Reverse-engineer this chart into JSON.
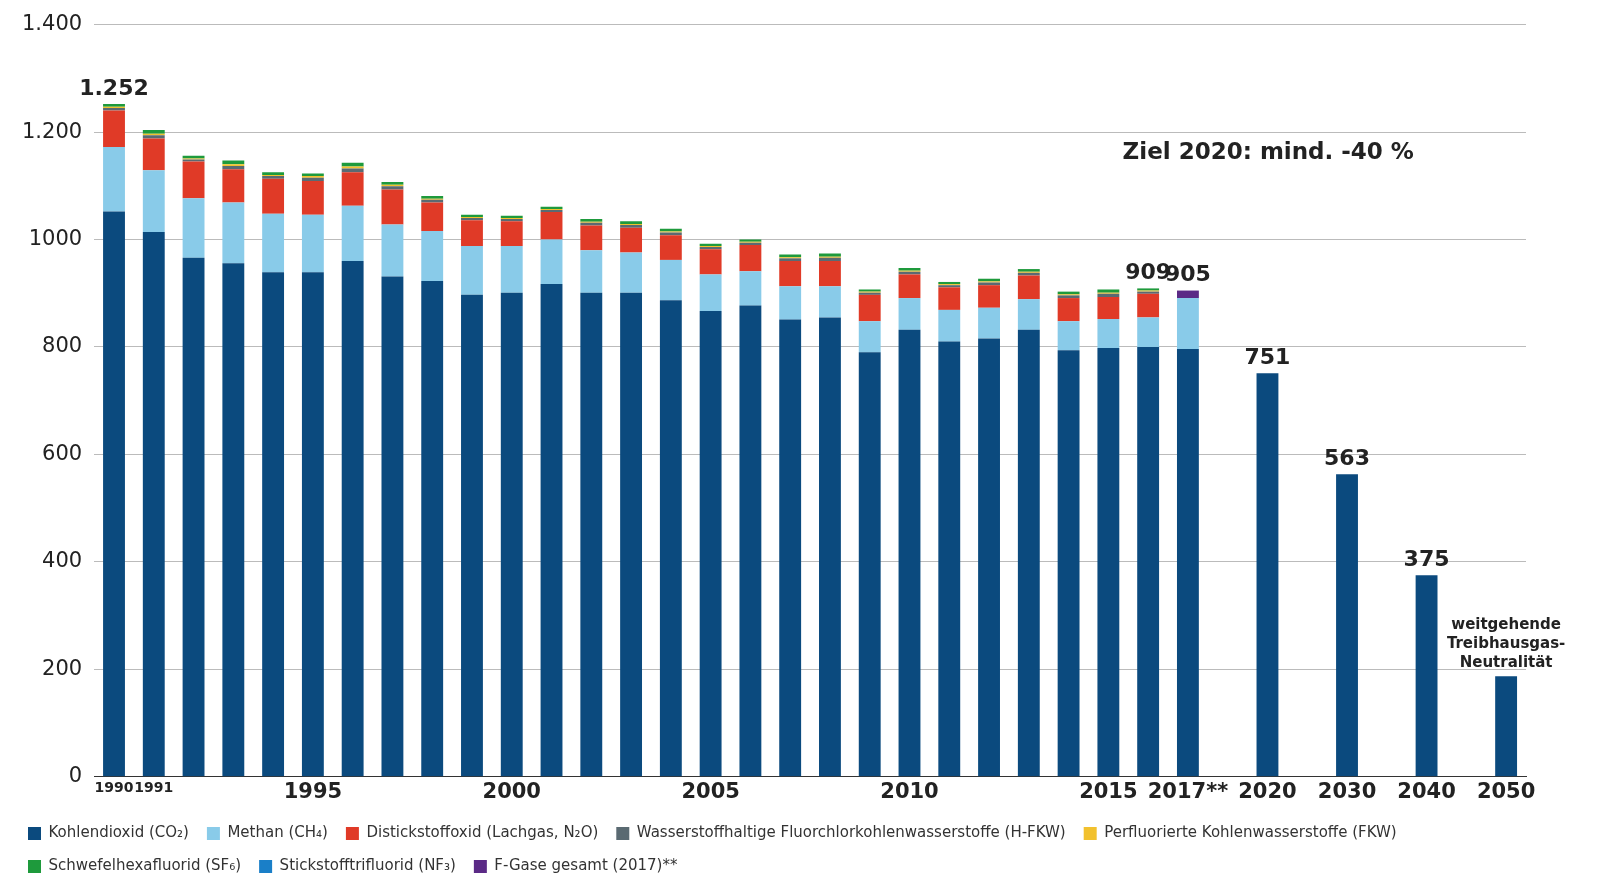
{
  "chart_data": {
    "type": "bar",
    "stacked": true,
    "categories": [
      "1990",
      "1991",
      null,
      null,
      null,
      "1995",
      null,
      null,
      null,
      null,
      "2000",
      null,
      null,
      null,
      null,
      "2005",
      null,
      null,
      null,
      null,
      "2010",
      null,
      null,
      null,
      null,
      "2015",
      null,
      "2017**",
      null,
      "2020",
      null,
      "2030",
      null,
      "2040",
      null,
      "2050"
    ],
    "series": [
      {
        "name": "Kohlendioxid (CO₂)",
        "color": "#0b4a7e",
        "values": [
          1052,
          1014,
          966,
          956,
          939,
          939,
          960,
          931,
          923,
          897,
          901,
          917,
          901,
          901,
          887,
          867,
          877,
          851,
          855,
          790,
          832,
          810,
          816,
          832,
          794,
          798,
          800,
          796,
          null,
          751,
          null,
          563,
          null,
          375,
          null,
          187
        ]
      },
      {
        "name": "Methan (CH₄)",
        "color": "#89cbe9",
        "values": [
          120,
          115,
          111,
          113,
          109,
          107,
          103,
          97,
          93,
          91,
          87,
          83,
          79,
          75,
          75,
          68,
          64,
          62,
          58,
          58,
          59,
          59,
          57,
          57,
          54,
          54,
          55,
          95,
          null,
          null,
          null,
          null,
          null,
          null,
          null,
          null
        ]
      },
      {
        "name": "Distickstoffoxid (Lachgas, N₂O)",
        "color": "#e03a27",
        "values": [
          68,
          59,
          68,
          62,
          65,
          63,
          62,
          65,
          53,
          48,
          46,
          51,
          46,
          46,
          46,
          47,
          49,
          47,
          47,
          49,
          44,
          42,
          42,
          44,
          43,
          41,
          44,
          null,
          null,
          null,
          null,
          null,
          null,
          null,
          null,
          null
        ]
      },
      {
        "name": "Wasserstoffhaltige Fluorchlorkohlenwasserstoffe (H-FKW)",
        "color": "#5a6a72",
        "values": [
          5,
          6,
          4,
          6,
          5,
          6,
          7,
          6,
          5,
          4,
          4,
          4,
          5,
          5,
          5,
          4,
          4,
          5,
          6,
          4,
          5,
          4,
          5,
          5,
          5,
          6,
          4,
          null,
          null,
          null,
          null,
          null,
          null,
          null,
          null,
          null
        ]
      },
      {
        "name": "Perfluorierte Kohlenwasserstoffe (FKW)",
        "color": "#f2c12e",
        "values": [
          2,
          3,
          2,
          3,
          2,
          3,
          4,
          3,
          2,
          2,
          2,
          2,
          2,
          2,
          2,
          2,
          2,
          2,
          2,
          2,
          2,
          2,
          2,
          2,
          2,
          2,
          2,
          null,
          null,
          null,
          null,
          null,
          null,
          null,
          null,
          null
        ]
      },
      {
        "name": "Schwefelhexafluorid (SF₆)",
        "color": "#1e9a3c",
        "values": [
          5,
          7,
          5,
          7,
          5,
          5,
          7,
          5,
          5,
          4,
          4,
          4,
          5,
          5,
          5,
          4,
          4,
          5,
          6,
          4,
          5,
          4,
          5,
          5,
          5,
          6,
          4,
          null,
          null,
          null,
          null,
          null,
          null,
          null,
          null,
          null
        ]
      },
      {
        "name": "Stickstofftrifluorid (NF₃)",
        "color": "#1a7fc8",
        "values": [
          0,
          0,
          0,
          0,
          0,
          0,
          0,
          0,
          0,
          0,
          0,
          0,
          0,
          0,
          0,
          0,
          0,
          0,
          0,
          0,
          0,
          0,
          0,
          0,
          0,
          0,
          0,
          null,
          null,
          null,
          null,
          null,
          null,
          null,
          null,
          null
        ]
      },
      {
        "name": "F-Gase gesamt (2017)**",
        "color": "#5b2a86",
        "values": [
          null,
          null,
          null,
          null,
          null,
          null,
          null,
          null,
          null,
          null,
          null,
          null,
          null,
          null,
          null,
          null,
          null,
          null,
          null,
          null,
          null,
          null,
          null,
          null,
          null,
          null,
          null,
          14,
          null,
          null,
          null,
          null,
          null,
          null,
          null,
          null
        ]
      }
    ],
    "totals": [
      "1.252",
      null,
      null,
      null,
      null,
      null,
      null,
      null,
      null,
      null,
      null,
      null,
      null,
      null,
      null,
      null,
      null,
      null,
      null,
      null,
      null,
      null,
      null,
      null,
      null,
      null,
      "909",
      "905",
      null,
      "751",
      null,
      "563",
      null,
      "375",
      null,
      null
    ],
    "ylim": [
      0,
      1400
    ],
    "yticks": [
      0,
      200,
      400,
      600,
      800,
      1000,
      {
        "value": 1200,
        "label": "1.200"
      },
      {
        "value": 1400,
        "label": "1.400"
      }
    ],
    "grid": "y",
    "legend": "bottom",
    "annotations": [
      "Ziel 2020: mind. -40 %",
      {
        "text": "weitgehende Treibhausgas-Neutralität",
        "x": "2050",
        "y": 187
      }
    ]
  }
}
